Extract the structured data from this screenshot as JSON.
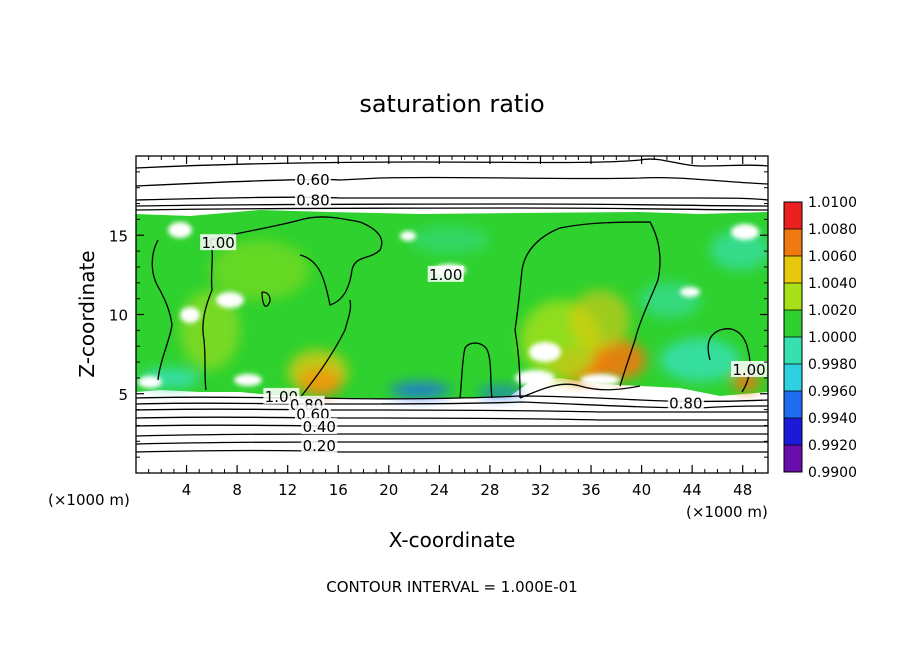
{
  "chart_data": {
    "type": "heatmap",
    "title": "saturation ratio",
    "xlabel": "X-coordinate",
    "ylabel": "Z-coordinate",
    "x_unit": "(×1000 m)",
    "y_unit": "(×1000 m)",
    "xlim": [
      0,
      50
    ],
    "ylim": [
      0,
      20
    ],
    "x_ticks": [
      4,
      8,
      12,
      16,
      20,
      24,
      28,
      32,
      36,
      40,
      44,
      48
    ],
    "x_tick_labels": [
      "4",
      "8",
      "12",
      "16",
      "20",
      "24",
      "28",
      "32",
      "36",
      "40",
      "44",
      "48"
    ],
    "y_ticks": [
      5,
      10,
      15
    ],
    "y_tick_labels": [
      "5",
      "10",
      "15"
    ],
    "colorbar": {
      "min": 0.99,
      "max": 1.01,
      "levels": [
        0.99,
        0.992,
        0.994,
        0.996,
        0.998,
        1.0,
        1.002,
        1.004,
        1.006,
        1.008,
        1.01
      ],
      "labels": [
        "0.9900",
        "0.9920",
        "0.9940",
        "0.9960",
        "0.9980",
        "1.0000",
        "1.0020",
        "1.0040",
        "1.0060",
        "1.0080",
        "1.0100"
      ],
      "colors": [
        "#6a0dad",
        "#1a1ad8",
        "#1e6cf0",
        "#2fd0e0",
        "#36e0b0",
        "#2ed12e",
        "#a8e01a",
        "#e8c80c",
        "#f07a10",
        "#ec2020",
        "#f08080"
      ]
    },
    "contour_labels": [
      {
        "text": "0.60",
        "x": 14,
        "z": 18.5
      },
      {
        "text": "0.80",
        "x": 14,
        "z": 17.2
      },
      {
        "text": "1.00",
        "x": 6.5,
        "z": 14.5
      },
      {
        "text": "1.00",
        "x": 24.5,
        "z": 12.5
      },
      {
        "text": "1.00",
        "x": 11.5,
        "z": 4.8
      },
      {
        "text": "0.80",
        "x": 13.5,
        "z": 4.3
      },
      {
        "text": "0.60",
        "x": 14,
        "z": 3.7
      },
      {
        "text": "0.40",
        "x": 14.5,
        "z": 2.9
      },
      {
        "text": "0.20",
        "x": 14.5,
        "z": 1.7
      },
      {
        "text": "0.80",
        "x": 43.5,
        "z": 4.4
      },
      {
        "text": "1.00",
        "x": 48.5,
        "z": 6.5
      }
    ],
    "contour_interval_text": "CONTOUR INTERVAL = 1.000E-01",
    "grid": false
  }
}
